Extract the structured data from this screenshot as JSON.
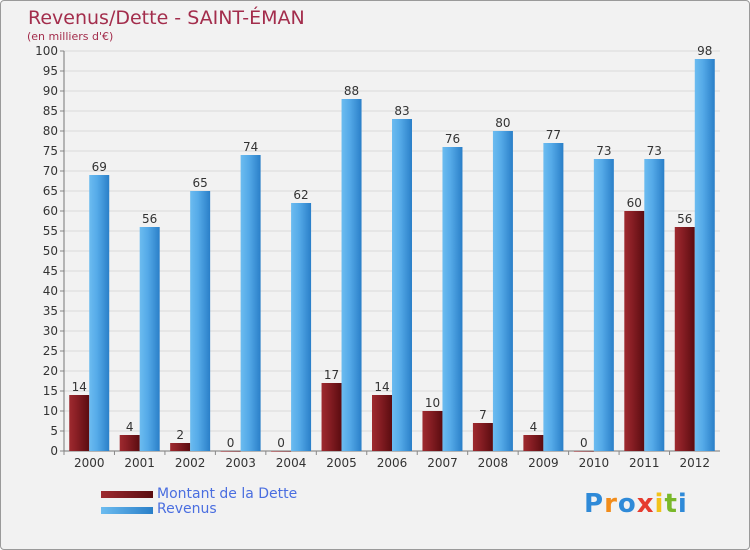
{
  "header": {
    "title": "Revenus/Dette - SAINT-ÉMAN",
    "subtitle": "(en milliers d'€)"
  },
  "legend": {
    "debt_label": "Montant de la Dette",
    "revenue_label": "Revenus"
  },
  "logo": {
    "text": "Proxiti",
    "letters": [
      "P",
      "r",
      "o",
      "x",
      "i",
      "t",
      "i"
    ],
    "letter_colors": [
      "#2f8ad8",
      "#f28c1a",
      "#2f8ad8",
      "#e63c2f",
      "#f2c31a",
      "#79b829",
      "#2f8ad8"
    ]
  },
  "colors": {
    "debt": "#7e1a1f",
    "revenue": "#4ea7e6",
    "grid": "#dadada",
    "axis_text": "#333333"
  },
  "chart_data": {
    "type": "bar",
    "title": "Revenus/Dette - SAINT-ÉMAN",
    "subtitle": "(en milliers d'€)",
    "xlabel": "",
    "ylabel": "",
    "ylim": [
      0,
      100
    ],
    "ytick_step": 5,
    "grid": true,
    "categories": [
      "2000",
      "2001",
      "2002",
      "2003",
      "2004",
      "2005",
      "2006",
      "2007",
      "2008",
      "2009",
      "2010",
      "2011",
      "2012"
    ],
    "series": [
      {
        "name": "Montant de la Dette",
        "values": [
          14,
          4,
          2,
          0,
          0,
          17,
          14,
          10,
          7,
          4,
          0,
          60,
          56
        ]
      },
      {
        "name": "Revenus",
        "values": [
          69,
          56,
          65,
          74,
          62,
          88,
          83,
          76,
          80,
          77,
          73,
          73,
          98
        ]
      }
    ],
    "legend_position": "bottom-left"
  }
}
